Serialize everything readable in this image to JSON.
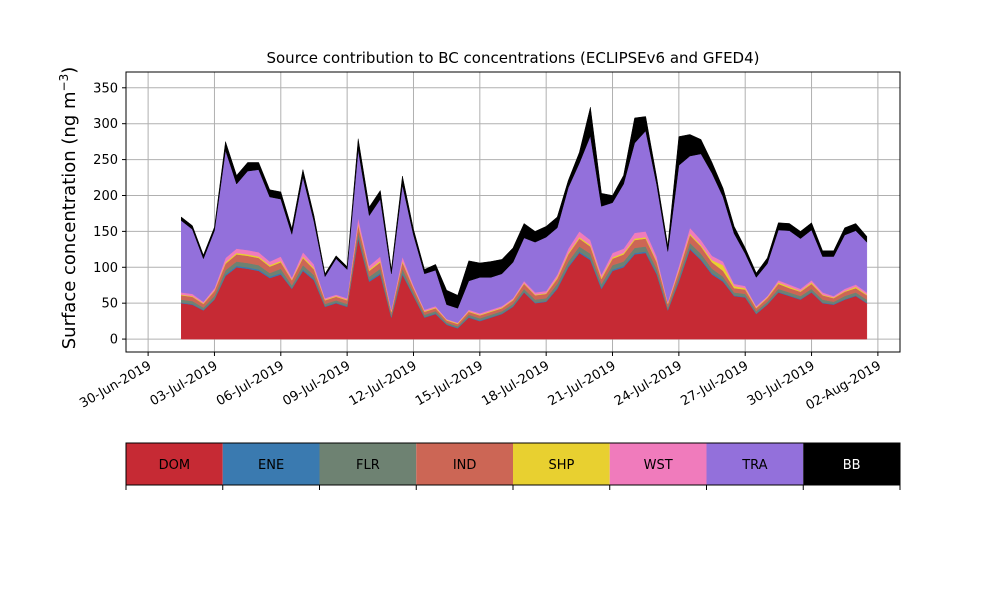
{
  "chart_data": {
    "type": "area",
    "stacked": true,
    "title": "Source contribution to BC concentrations (ECLIPSEv6 and GFED4)",
    "ylabel": "Surface concentration (ng m",
    "ylabel_sup": "−3",
    "ylabel_close": ")",
    "ylim": [
      -18,
      372
    ],
    "yticks": [
      0,
      50,
      100,
      150,
      200,
      250,
      300,
      350
    ],
    "xlim": [
      "2019-06-29",
      "2019-08-03"
    ],
    "xticks": [
      "30-Jun-2019",
      "03-Jul-2019",
      "06-Jul-2019",
      "09-Jul-2019",
      "12-Jul-2019",
      "15-Jul-2019",
      "18-Jul-2019",
      "21-Jul-2019",
      "24-Jul-2019",
      "27-Jul-2019",
      "30-Jul-2019",
      "02-Aug-2019"
    ],
    "xtick_positions": [
      "2019-06-30",
      "2019-07-03",
      "2019-07-06",
      "2019-07-09",
      "2019-07-12",
      "2019-07-15",
      "2019-07-18",
      "2019-07-21",
      "2019-07-24",
      "2019-07-27",
      "2019-07-30",
      "2019-08-02"
    ],
    "grid": true,
    "legend_position": "below",
    "x": [
      "2019-07-01 12:00",
      "2019-07-02 00:00",
      "2019-07-02 12:00",
      "2019-07-03 00:00",
      "2019-07-03 12:00",
      "2019-07-04 00:00",
      "2019-07-04 12:00",
      "2019-07-05 00:00",
      "2019-07-05 12:00",
      "2019-07-06 00:00",
      "2019-07-06 12:00",
      "2019-07-07 00:00",
      "2019-07-07 12:00",
      "2019-07-08 00:00",
      "2019-07-08 12:00",
      "2019-07-09 00:00",
      "2019-07-09 12:00",
      "2019-07-10 00:00",
      "2019-07-10 12:00",
      "2019-07-11 00:00",
      "2019-07-11 12:00",
      "2019-07-12 00:00",
      "2019-07-12 12:00",
      "2019-07-13 00:00",
      "2019-07-13 12:00",
      "2019-07-14 00:00",
      "2019-07-14 12:00",
      "2019-07-15 00:00",
      "2019-07-15 12:00",
      "2019-07-16 00:00",
      "2019-07-16 12:00",
      "2019-07-17 00:00",
      "2019-07-17 12:00",
      "2019-07-18 00:00",
      "2019-07-18 12:00",
      "2019-07-19 00:00",
      "2019-07-19 12:00",
      "2019-07-20 00:00",
      "2019-07-20 12:00",
      "2019-07-21 00:00",
      "2019-07-21 12:00",
      "2019-07-22 00:00",
      "2019-07-22 12:00",
      "2019-07-23 00:00",
      "2019-07-23 12:00",
      "2019-07-24 00:00",
      "2019-07-24 12:00",
      "2019-07-25 00:00",
      "2019-07-25 12:00",
      "2019-07-26 00:00",
      "2019-07-26 12:00",
      "2019-07-27 00:00",
      "2019-07-27 12:00",
      "2019-07-28 00:00",
      "2019-07-28 12:00",
      "2019-07-29 00:00",
      "2019-07-29 12:00",
      "2019-07-30 00:00",
      "2019-07-30 12:00",
      "2019-07-31 00:00",
      "2019-07-31 12:00",
      "2019-08-01 00:00",
      "2019-08-01 12:00"
    ],
    "series": [
      {
        "name": "DOM",
        "color": "#c62a34",
        "values": [
          50,
          48,
          40,
          55,
          88,
          100,
          98,
          95,
          85,
          90,
          70,
          95,
          82,
          45,
          50,
          45,
          140,
          80,
          90,
          30,
          90,
          60,
          30,
          35,
          20,
          15,
          30,
          25,
          30,
          35,
          45,
          65,
          50,
          52,
          70,
          100,
          120,
          110,
          70,
          95,
          100,
          118,
          120,
          90,
          40,
          80,
          125,
          110,
          90,
          80,
          60,
          58,
          35,
          48,
          65,
          60,
          55,
          65,
          50,
          48,
          55,
          60,
          50
        ]
      },
      {
        "name": "ENE",
        "color": "#3a7ab0",
        "values": [
          1,
          1,
          1,
          1,
          2,
          2,
          2,
          2,
          2,
          2,
          1,
          2,
          2,
          1,
          1,
          1,
          2,
          2,
          2,
          1,
          2,
          1,
          1,
          1,
          1,
          1,
          1,
          1,
          1,
          1,
          1,
          1,
          1,
          1,
          2,
          2,
          2,
          2,
          2,
          2,
          2,
          2,
          2,
          2,
          1,
          2,
          2,
          2,
          2,
          2,
          1,
          1,
          1,
          1,
          1,
          1,
          1,
          1,
          1,
          1,
          1,
          1,
          1
        ]
      },
      {
        "name": "FLR",
        "color": "#6e8272",
        "values": [
          4,
          4,
          3,
          4,
          6,
          6,
          6,
          6,
          5,
          6,
          4,
          6,
          5,
          3,
          3,
          3,
          7,
          5,
          6,
          3,
          6,
          4,
          3,
          3,
          2,
          2,
          3,
          3,
          3,
          3,
          3,
          4,
          4,
          4,
          5,
          6,
          7,
          7,
          5,
          6,
          6,
          7,
          7,
          6,
          3,
          5,
          7,
          7,
          6,
          5,
          4,
          4,
          3,
          3,
          4,
          4,
          4,
          4,
          4,
          3,
          4,
          4,
          4
        ]
      },
      {
        "name": "IND",
        "color": "#cc6655",
        "values": [
          6,
          6,
          5,
          7,
          9,
          10,
          10,
          10,
          9,
          9,
          7,
          10,
          8,
          5,
          5,
          5,
          10,
          8,
          9,
          4,
          9,
          6,
          4,
          4,
          3,
          3,
          4,
          4,
          4,
          4,
          5,
          7,
          6,
          6,
          7,
          10,
          11,
          10,
          7,
          9,
          10,
          11,
          11,
          9,
          5,
          8,
          11,
          10,
          9,
          8,
          6,
          6,
          4,
          5,
          7,
          6,
          6,
          7,
          6,
          5,
          6,
          6,
          6
        ]
      },
      {
        "name": "SHP",
        "color": "#e8d030",
        "values": [
          1,
          1,
          1,
          1,
          2,
          2,
          2,
          2,
          2,
          2,
          1,
          2,
          2,
          1,
          1,
          1,
          2,
          2,
          2,
          1,
          2,
          1,
          1,
          1,
          1,
          1,
          1,
          1,
          1,
          1,
          1,
          1,
          1,
          1,
          2,
          2,
          2,
          2,
          2,
          2,
          2,
          2,
          2,
          2,
          1,
          2,
          2,
          2,
          3,
          8,
          3,
          2,
          1,
          1,
          2,
          2,
          1,
          2,
          1,
          1,
          1,
          2,
          1
        ]
      },
      {
        "name": "WST",
        "color": "#f07bbc",
        "values": [
          3,
          3,
          2,
          3,
          6,
          6,
          6,
          6,
          5,
          6,
          3,
          6,
          5,
          2,
          2,
          2,
          8,
          5,
          6,
          2,
          6,
          3,
          2,
          2,
          1,
          1,
          2,
          2,
          2,
          2,
          2,
          3,
          3,
          3,
          4,
          6,
          8,
          7,
          4,
          6,
          6,
          8,
          8,
          6,
          2,
          5,
          8,
          7,
          6,
          5,
          3,
          3,
          2,
          2,
          3,
          3,
          3,
          3,
          3,
          2,
          3,
          3,
          3
        ]
      },
      {
        "name": "TRA",
        "color": "#9370db",
        "values": [
          100,
          90,
          60,
          80,
          150,
          90,
          110,
          115,
          90,
          80,
          60,
          105,
          60,
          30,
          50,
          40,
          95,
          70,
          80,
          50,
          100,
          70,
          50,
          50,
          20,
          20,
          40,
          50,
          45,
          45,
          50,
          60,
          70,
          75,
          65,
          85,
          95,
          145,
          95,
          70,
          90,
          125,
          140,
          100,
          70,
          140,
          100,
          120,
          115,
          90,
          70,
          45,
          40,
          45,
          70,
          75,
          70,
          70,
          50,
          55,
          75,
          75,
          70
        ]
      },
      {
        "name": "BB",
        "color": "#000000",
        "values": [
          5,
          5,
          5,
          5,
          12,
          12,
          12,
          10,
          10,
          10,
          8,
          10,
          8,
          4,
          4,
          4,
          15,
          12,
          12,
          6,
          12,
          8,
          6,
          8,
          20,
          18,
          28,
          20,
          22,
          20,
          20,
          20,
          15,
          15,
          15,
          10,
          15,
          40,
          18,
          10,
          12,
          35,
          20,
          10,
          8,
          40,
          30,
          20,
          15,
          12,
          10,
          8,
          6,
          8,
          10,
          10,
          10,
          10,
          8,
          8,
          10,
          10,
          8
        ]
      }
    ],
    "legend": [
      "DOM",
      "ENE",
      "FLR",
      "IND",
      "SHP",
      "WST",
      "TRA",
      "BB"
    ]
  }
}
